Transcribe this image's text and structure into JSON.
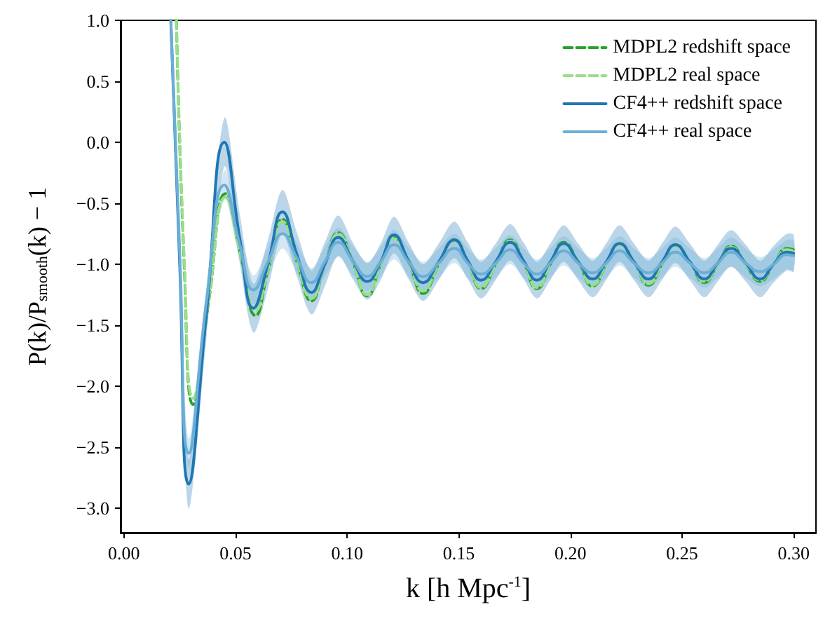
{
  "chart_data": {
    "type": "line",
    "xlabel": "k [h Mpc$^{-1}$]",
    "ylabel": "P(k)/P$_{smooth}$(k) − 1",
    "x": [
      0.021,
      0.025,
      0.029,
      0.037,
      0.045,
      0.052,
      0.058,
      0.0645,
      0.071,
      0.0775,
      0.084,
      0.09,
      0.096,
      0.1025,
      0.109,
      0.115,
      0.121,
      0.1275,
      0.134,
      0.141,
      0.148,
      0.154,
      0.16,
      0.1665,
      0.173,
      0.179,
      0.185,
      0.191,
      0.197,
      0.2035,
      0.21,
      0.216,
      0.222,
      0.2285,
      0.235,
      0.241,
      0.247,
      0.2535,
      0.26,
      0.266,
      0.272,
      0.2785,
      0.285,
      0.291,
      0.297,
      0.3
    ],
    "series": [
      {
        "name": "MDPL2 redshift space",
        "color": "#2ca02c",
        "line_style": "dashed",
        "x": [
          0.0235,
          0.027,
          0.031,
          0.038,
          0.0455,
          0.052,
          0.059,
          0.0645,
          0.071,
          0.0775,
          0.084,
          0.09,
          0.096,
          0.1025,
          0.109,
          0.115,
          0.121,
          0.1275,
          0.134,
          0.141,
          0.148,
          0.154,
          0.16,
          0.1665,
          0.173,
          0.179,
          0.185,
          0.191,
          0.197,
          0.2035,
          0.21,
          0.216,
          0.222,
          0.2285,
          0.235,
          0.241,
          0.247,
          0.2535,
          0.26,
          0.266,
          0.272,
          0.2785,
          0.285,
          0.291,
          0.297,
          0.3
        ],
        "values": [
          1.0,
          -1.0,
          -2.15,
          -1.3,
          -0.42,
          -0.9,
          -1.42,
          -1.05,
          -0.63,
          -0.98,
          -1.3,
          -1.0,
          -0.74,
          -0.98,
          -1.26,
          -1.0,
          -0.78,
          -0.98,
          -1.24,
          -1.0,
          -0.8,
          -0.98,
          -1.2,
          -1.0,
          -0.8,
          -0.98,
          -1.2,
          -1.0,
          -0.82,
          -0.98,
          -1.18,
          -1.0,
          -0.83,
          -0.98,
          -1.17,
          -1.0,
          -0.84,
          -0.98,
          -1.15,
          -1.0,
          -0.85,
          -1.0,
          -1.14,
          -1.0,
          -0.87,
          -0.88
        ]
      },
      {
        "name": "MDPL2 real space",
        "color": "#98df8a",
        "line_style": "dashed",
        "x": [
          0.0235,
          0.027,
          0.031,
          0.038,
          0.0455,
          0.052,
          0.059,
          0.0645,
          0.071,
          0.0775,
          0.084,
          0.09,
          0.096,
          0.1025,
          0.109,
          0.115,
          0.121,
          0.1275,
          0.134,
          0.141,
          0.148,
          0.154,
          0.16,
          0.1665,
          0.173,
          0.179,
          0.185,
          0.191,
          0.197,
          0.2035,
          0.21,
          0.216,
          0.222,
          0.2285,
          0.235,
          0.241,
          0.247,
          0.2535,
          0.26,
          0.266,
          0.272,
          0.2785,
          0.285,
          0.291,
          0.297,
          0.3
        ],
        "values": [
          1.0,
          -0.95,
          -2.1,
          -1.28,
          -0.45,
          -0.9,
          -1.38,
          -1.04,
          -0.65,
          -0.98,
          -1.28,
          -1.0,
          -0.75,
          -0.98,
          -1.25,
          -1.0,
          -0.79,
          -0.98,
          -1.22,
          -1.0,
          -0.81,
          -0.98,
          -1.19,
          -1.0,
          -0.81,
          -0.98,
          -1.19,
          -1.0,
          -0.83,
          -0.98,
          -1.17,
          -1.0,
          -0.84,
          -0.98,
          -1.16,
          -1.0,
          -0.85,
          -0.98,
          -1.14,
          -1.0,
          -0.86,
          -1.0,
          -1.13,
          -1.0,
          -0.88,
          -0.89
        ]
      },
      {
        "name": "CF4++ redshift space",
        "color": "#1f77b4",
        "line_style": "solid",
        "values": [
          1.0,
          -1.0,
          -2.8,
          -1.4,
          0.0,
          -0.8,
          -1.36,
          -1.0,
          -0.57,
          -0.92,
          -1.23,
          -1.0,
          -0.78,
          -0.97,
          -1.14,
          -0.98,
          -0.76,
          -0.97,
          -1.15,
          -0.98,
          -0.8,
          -0.97,
          -1.13,
          -0.98,
          -0.82,
          -0.97,
          -1.13,
          -0.98,
          -0.83,
          -0.98,
          -1.12,
          -0.98,
          -0.83,
          -0.98,
          -1.12,
          -0.98,
          -0.84,
          -0.98,
          -1.12,
          -0.99,
          -0.87,
          -0.99,
          -1.12,
          -1.0,
          -0.9,
          -0.91
        ],
        "upper": [
          1.0,
          -0.8,
          -2.6,
          -1.2,
          0.2,
          -0.6,
          -1.16,
          -0.8,
          -0.39,
          -0.74,
          -1.05,
          -0.82,
          -0.6,
          -0.82,
          -0.99,
          -0.83,
          -0.61,
          -0.82,
          -1.0,
          -0.83,
          -0.65,
          -0.82,
          -0.98,
          -0.83,
          -0.67,
          -0.82,
          -0.98,
          -0.83,
          -0.68,
          -0.83,
          -0.97,
          -0.83,
          -0.68,
          -0.83,
          -0.97,
          -0.83,
          -0.69,
          -0.83,
          -0.97,
          -0.84,
          -0.72,
          -0.84,
          -0.97,
          -0.85,
          -0.75,
          -0.76
        ],
        "lower": [
          0.8,
          -1.2,
          -3.0,
          -1.6,
          -0.2,
          -1.0,
          -1.56,
          -1.2,
          -0.75,
          -1.1,
          -1.41,
          -1.18,
          -0.93,
          -1.12,
          -1.29,
          -1.13,
          -0.91,
          -1.12,
          -1.3,
          -1.13,
          -0.95,
          -1.12,
          -1.28,
          -1.13,
          -0.97,
          -1.12,
          -1.28,
          -1.13,
          -0.98,
          -1.13,
          -1.27,
          -1.13,
          -0.98,
          -1.13,
          -1.27,
          -1.13,
          -0.99,
          -1.13,
          -1.27,
          -1.14,
          -1.02,
          -1.14,
          -1.27,
          -1.15,
          -1.05,
          -1.06
        ]
      },
      {
        "name": "CF4++ real space",
        "color": "#6baed6",
        "line_style": "solid",
        "values": [
          1.0,
          -0.9,
          -2.55,
          -1.3,
          -0.35,
          -0.85,
          -1.21,
          -0.98,
          -0.75,
          -0.95,
          -1.15,
          -0.98,
          -0.82,
          -0.97,
          -1.1,
          -0.98,
          -0.84,
          -0.98,
          -1.1,
          -0.99,
          -0.87,
          -0.99,
          -1.08,
          -0.99,
          -0.88,
          -0.99,
          -1.08,
          -0.99,
          -0.89,
          -0.99,
          -1.07,
          -0.99,
          -0.89,
          -0.99,
          -1.07,
          -0.99,
          -0.9,
          -0.99,
          -1.07,
          -0.99,
          -0.9,
          -0.99,
          -1.06,
          -1.0,
          -0.92,
          -0.93
        ],
        "upper": [
          1.0,
          -0.78,
          -2.43,
          -1.18,
          -0.23,
          -0.73,
          -1.09,
          -0.86,
          -0.63,
          -0.83,
          -1.03,
          -0.86,
          -0.7,
          -0.85,
          -0.98,
          -0.86,
          -0.72,
          -0.86,
          -0.98,
          -0.87,
          -0.75,
          -0.87,
          -0.96,
          -0.87,
          -0.76,
          -0.87,
          -0.96,
          -0.87,
          -0.77,
          -0.87,
          -0.95,
          -0.87,
          -0.77,
          -0.87,
          -0.95,
          -0.87,
          -0.78,
          -0.87,
          -0.95,
          -0.87,
          -0.78,
          -0.87,
          -0.94,
          -0.88,
          -0.8,
          -0.81
        ],
        "lower": [
          0.88,
          -1.02,
          -2.67,
          -1.42,
          -0.47,
          -0.97,
          -1.33,
          -1.1,
          -0.87,
          -1.07,
          -1.27,
          -1.1,
          -0.94,
          -1.09,
          -1.22,
          -1.1,
          -0.96,
          -1.1,
          -1.22,
          -1.11,
          -0.99,
          -1.11,
          -1.2,
          -1.11,
          -1.0,
          -1.11,
          -1.2,
          -1.11,
          -1.01,
          -1.11,
          -1.19,
          -1.11,
          -1.01,
          -1.11,
          -1.19,
          -1.11,
          -1.02,
          -1.11,
          -1.19,
          -1.11,
          -1.02,
          -1.11,
          -1.18,
          -1.12,
          -1.04,
          -1.05
        ]
      }
    ],
    "xlim": [
      -0.0015,
      0.31
    ],
    "xticks": [
      {
        "value": 0,
        "label": "0.00"
      },
      {
        "value": 0.05,
        "label": "0.05"
      },
      {
        "value": 0.1,
        "label": "0.10"
      },
      {
        "value": 0.15,
        "label": "0.15"
      },
      {
        "value": 0.2,
        "label": "0.20"
      },
      {
        "value": 0.25,
        "label": "0.25"
      },
      {
        "value": 0.3,
        "label": "0.30"
      }
    ],
    "ylim": [
      -3.2,
      1.0
    ],
    "yticks": [
      {
        "value": -3,
        "label": "−3.0"
      },
      {
        "value": -2.5,
        "label": "−2.5"
      },
      {
        "value": -2,
        "label": "−2.0"
      },
      {
        "value": -1.5,
        "label": "−1.5"
      },
      {
        "value": -1,
        "label": "−1.0"
      },
      {
        "value": -0.5,
        "label": "−0.5"
      },
      {
        "value": 0,
        "label": "0.0"
      },
      {
        "value": 0.5,
        "label": "0.5"
      },
      {
        "value": 1,
        "label": "1.0"
      }
    ],
    "grid": false,
    "legend": "top right"
  }
}
